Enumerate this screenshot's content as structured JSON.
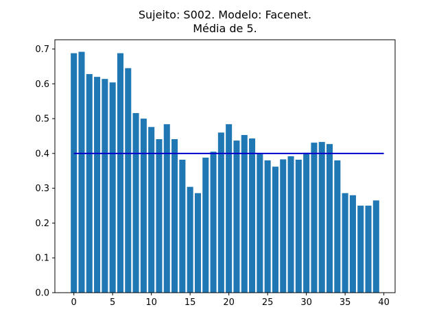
{
  "chart_data": {
    "type": "bar",
    "title": [
      "Sujeito: S002. Modelo: Facenet.",
      "Média de 5."
    ],
    "xlabel": "",
    "ylabel": "",
    "x": [
      0,
      1,
      2,
      3,
      4,
      5,
      6,
      7,
      8,
      9,
      10,
      11,
      12,
      13,
      14,
      15,
      16,
      17,
      18,
      19,
      20,
      21,
      22,
      23,
      24,
      25,
      26,
      27,
      28,
      29,
      30,
      31,
      32,
      33,
      34,
      35,
      36,
      37,
      38,
      39
    ],
    "values": [
      0.688,
      0.692,
      0.628,
      0.62,
      0.614,
      0.604,
      0.688,
      0.645,
      0.516,
      0.5,
      0.476,
      0.441,
      0.484,
      0.441,
      0.382,
      0.304,
      0.286,
      0.388,
      0.405,
      0.46,
      0.484,
      0.437,
      0.453,
      0.443,
      0.399,
      0.38,
      0.362,
      0.383,
      0.392,
      0.382,
      0.402,
      0.431,
      0.433,
      0.427,
      0.38,
      0.286,
      0.28,
      0.25,
      0.25,
      0.265
    ],
    "bar_color": "#1f77b4",
    "reference_line": {
      "value": 0.4,
      "x_range": [
        0,
        40
      ],
      "color": "#0000cc"
    },
    "xlim": [
      -2.45,
      41.45
    ],
    "ylim": [
      0,
      0.7266
    ],
    "xticks": [
      "0",
      "5",
      "10",
      "15",
      "20",
      "25",
      "30",
      "35",
      "40"
    ],
    "yticks": [
      "0.0",
      "0.1",
      "0.2",
      "0.3",
      "0.4",
      "0.5",
      "0.6",
      "0.7"
    ],
    "grid": false,
    "legend": "none"
  }
}
